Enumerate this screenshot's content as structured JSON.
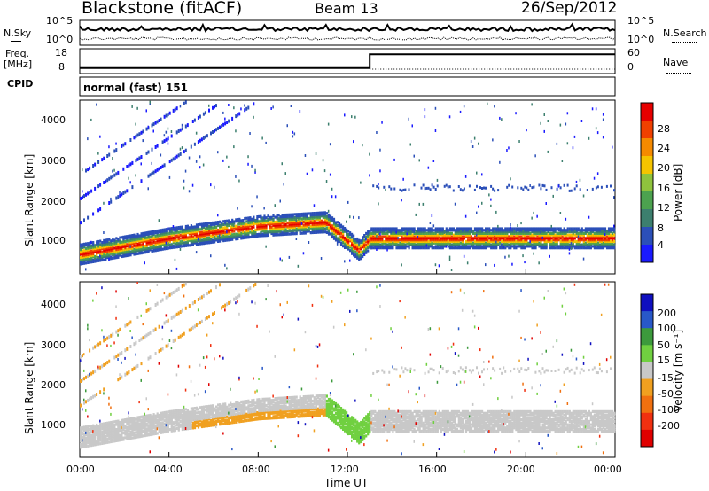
{
  "header": {
    "station": "Blackstone (fitACF)",
    "beam": "Beam 13",
    "date": "26/Sep/2012"
  },
  "noise_panel": {
    "left_label": "N.Sky",
    "left_top_tick": "10^5",
    "left_bottom_tick": "10^0",
    "right_top_tick": "10^5",
    "right_bottom_tick": "10^0",
    "right_label": "N.Search"
  },
  "freq_panel": {
    "left_label_1": "Freq.",
    "left_label_2": "[MHz]",
    "left_ticks": [
      "18",
      "8"
    ],
    "right_ticks": [
      "60",
      "0"
    ],
    "right_label": "Nave"
  },
  "cpid_panel": {
    "label": "CPID",
    "text": "normal (fast) 151"
  },
  "power_panel": {
    "ylabel": "Slant Range [km]",
    "yticks": [
      "4000",
      "3000",
      "2000",
      "1000"
    ],
    "colorbar_label": "Power [dB]",
    "colorbar_ticks": [
      "28",
      "24",
      "20",
      "16",
      "12",
      "8",
      "4"
    ]
  },
  "velocity_panel": {
    "ylabel": "Slant Range [km]",
    "yticks": [
      "4000",
      "3000",
      "2000",
      "1000"
    ],
    "colorbar_label": "Velocity [m s⁻¹]",
    "colorbar_ticks": [
      "200",
      "100",
      "50",
      "15",
      "-15",
      "-50",
      "-100",
      "-200"
    ]
  },
  "x_axis": {
    "label": "Time UT",
    "ticks": [
      "00:00",
      "04:00",
      "08:00",
      "12:00",
      "16:00",
      "20:00",
      "00:00"
    ]
  },
  "colors": {
    "power_scale": [
      "#1a1aff",
      "#2b4fb8",
      "#3c7f6e",
      "#4ca24f",
      "#8fc33d",
      "#f5c400",
      "#f58a00",
      "#f04000",
      "#e60000"
    ],
    "velocity_scale": [
      "#1010c0",
      "#2858c8",
      "#3c9a3c",
      "#70d040",
      "#c8c8c8",
      "#f0a020",
      "#f07010",
      "#f03010",
      "#e00000"
    ]
  },
  "chart_data": [
    {
      "type": "line",
      "title": "",
      "series": [
        {
          "name": "N.Sky",
          "values": "noisy, near top of log scale"
        },
        {
          "name": "N.Search",
          "values": "lower curve, near bottom"
        }
      ],
      "ylim_log": [
        0,
        5
      ]
    },
    {
      "type": "line",
      "x": [
        0,
        13,
        13,
        24
      ],
      "series": [
        {
          "name": "Freq [MHz]",
          "values": [
            10,
            10,
            16,
            16
          ]
        },
        {
          "name": "Nave",
          "values": [
            0,
            0,
            17,
            17
          ]
        }
      ],
      "ylim": [
        8,
        18
      ],
      "ylim_right": [
        0,
        60
      ]
    },
    {
      "type": "heatmap",
      "xlabel": "Time UT",
      "ylabel": "Slant Range [km]",
      "xlim_hours": [
        0,
        24
      ],
      "ylim_km": [
        180,
        4500
      ],
      "colorbar": "Power [dB]",
      "colorbar_range": [
        0,
        32
      ],
      "features": [
        {
          "desc": "main scatter band",
          "time_h": [
            0,
            4,
            8,
            11,
            12.5,
            13,
            24
          ],
          "range_km": [
            700,
            1100,
            1400,
            1500,
            800,
            1100,
            1100
          ],
          "power_db": 26
        },
        {
          "desc": "upper diagonal bands",
          "time_h": [
            0,
            6
          ],
          "range_km": [
            1500,
            4500
          ],
          "power_db": 8
        }
      ]
    },
    {
      "type": "heatmap",
      "xlabel": "Time UT",
      "ylabel": "Slant Range [km]",
      "xlim_hours": [
        0,
        24
      ],
      "ylim_km": [
        180,
        4500
      ],
      "colorbar": "Velocity [m s-1]",
      "colorbar_range": [
        -250,
        250
      ],
      "features": [
        {
          "desc": "ground scatter grey band",
          "time_h": [
            0,
            24
          ],
          "range_km": [
            1000,
            1400
          ],
          "velocity": 0
        },
        {
          "desc": "negative velocity orange 05-11 UT",
          "time_h": [
            5,
            11
          ],
          "range_km": [
            1000,
            2000
          ],
          "velocity": -60
        },
        {
          "desc": "positive velocity green near 12 UT",
          "time_h": [
            11,
            13
          ],
          "range_km": [
            1000,
            2400
          ],
          "velocity": 40
        }
      ]
    }
  ]
}
